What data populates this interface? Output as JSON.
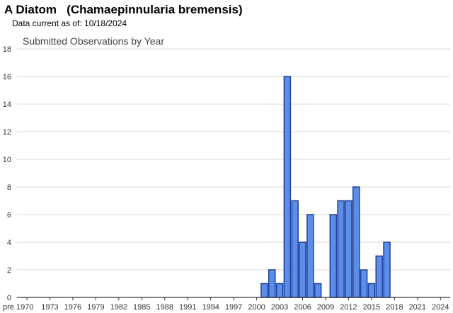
{
  "header": {
    "title": "A Diatom   (Chamaepinnularia bremensis)",
    "data_current": "Data current as of: 10/18/2024"
  },
  "colors": {
    "bar_fill": "#5b8ee6",
    "bar_stroke": "#1f3f9a",
    "gridline": "#d9d9d9",
    "axis": "#333333"
  },
  "chart_data": {
    "type": "bar",
    "title": "Submitted Observations by Year",
    "xlabel": "",
    "ylabel": "",
    "ylim": [
      0,
      18
    ],
    "yticks": [
      0,
      2,
      4,
      6,
      8,
      10,
      12,
      14,
      16,
      18
    ],
    "grid": true,
    "legend": "none",
    "x_tick_labels": [
      "pre 1970",
      "1973",
      "1976",
      "1979",
      "1982",
      "1985",
      "1988",
      "1991",
      "1994",
      "1997",
      "2000",
      "2003",
      "2006",
      "2009",
      "2012",
      "2015",
      "2018",
      "2021",
      "2024"
    ],
    "categories": [
      "2001",
      "2002",
      "2003",
      "2004",
      "2005",
      "2006",
      "2007",
      "2008",
      "2010",
      "2011",
      "2012",
      "2013",
      "2014",
      "2015",
      "2016",
      "2017"
    ],
    "values": [
      1,
      2,
      1,
      16,
      7,
      4,
      6,
      1,
      6,
      7,
      7,
      8,
      2,
      1,
      3,
      4
    ]
  }
}
